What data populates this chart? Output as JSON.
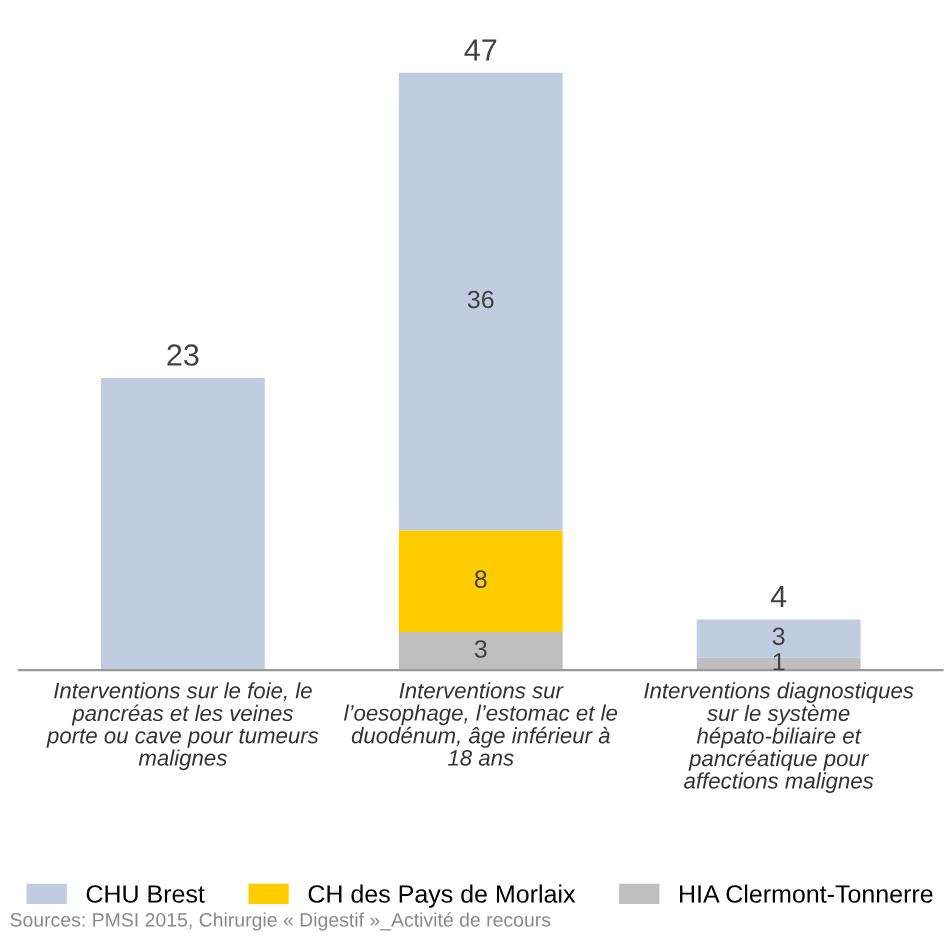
{
  "chart_data": {
    "type": "bar",
    "stacked": true,
    "categories": [
      "Interventions sur le foie, le pancréas et les veines porte ou cave pour tumeurs malignes",
      "Interventions sur l’oesophage, l’estomac et le duodénum, âge inférieur à 18 ans",
      "Interventions diagnostiques sur le système hépato-biliaire et pancréatique pour affections malignes"
    ],
    "series": [
      {
        "name": "HIA Clermont-Tonnerre",
        "color": "#bfbfbf",
        "values": [
          null,
          3,
          1
        ],
        "value_labels": [
          null,
          "3",
          "1"
        ]
      },
      {
        "name": "CH des Pays de Morlaix",
        "color": "#ffcc00",
        "values": [
          null,
          8,
          null
        ],
        "value_labels": [
          null,
          "8",
          null
        ]
      },
      {
        "name": "CHU Brest",
        "color": "#c0cde0",
        "values": [
          23,
          36,
          3
        ],
        "value_labels": [
          null,
          "36",
          "3"
        ]
      }
    ],
    "totals": [
      "23",
      "47",
      "4"
    ],
    "legend": "bottom",
    "annotations": [
      "Sources: PMSI 2015, Chirurgie « Digestif »_Activité de recours"
    ]
  }
}
